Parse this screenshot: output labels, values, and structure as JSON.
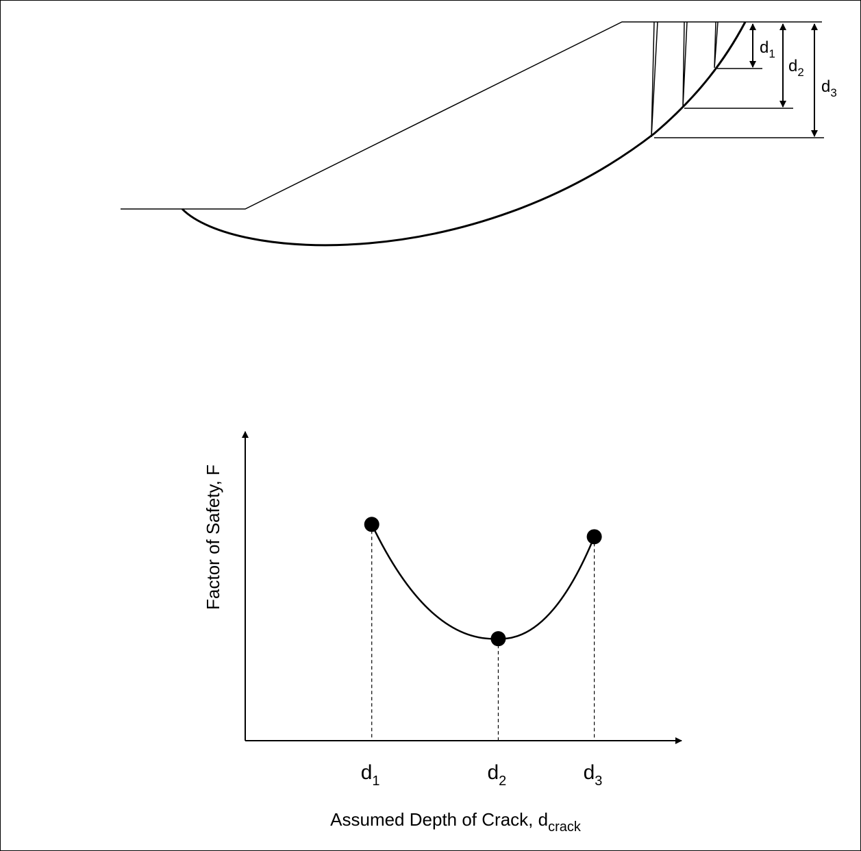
{
  "colors": {
    "ink": "#000000",
    "background": "#ffffff"
  },
  "slope_diagram": {
    "labels": [
      {
        "base": "d",
        "sub": "1"
      },
      {
        "base": "d",
        "sub": "2"
      },
      {
        "base": "d",
        "sub": "3"
      }
    ]
  },
  "chart_data": {
    "type": "line",
    "ylabel": "Factor of Safety, F",
    "xlabel": {
      "base": "Assumed Depth of Crack, d",
      "sub": "crack"
    },
    "categories": [
      {
        "base": "d",
        "sub": "1"
      },
      {
        "base": "d",
        "sub": "2"
      },
      {
        "base": "d",
        "sub": "3"
      }
    ],
    "x": [
      1,
      2,
      3
    ],
    "x_positions_relative": [
      0.29,
      0.58,
      0.8
    ],
    "values": [
      0.7,
      0.33,
      0.66
    ],
    "ylim": [
      0,
      1
    ],
    "grid": false,
    "drop_lines": true,
    "axis_ticks_numeric": false
  }
}
